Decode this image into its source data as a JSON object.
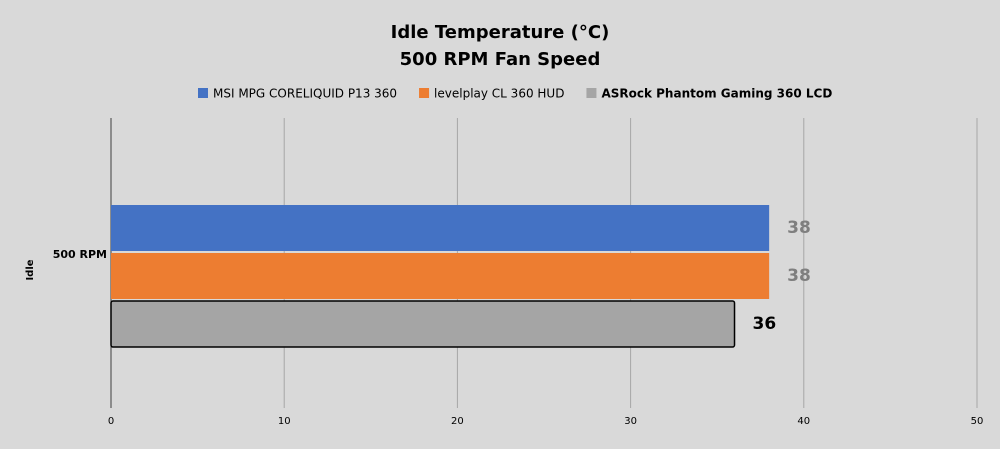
{
  "chart_data": {
    "type": "bar",
    "orientation": "horizontal",
    "title": "Idle Temperature (°C)",
    "subtitle": "500 RPM Fan Speed",
    "y_label": "Idle",
    "categories": [
      "500 RPM"
    ],
    "series": [
      {
        "name": "MSI MPG CORELIQUID P13 360",
        "color": "#4472c4",
        "label_color": "#7f7f7f",
        "values": [
          38
        ]
      },
      {
        "name": "levelplay CL 360 HUD",
        "color": "#ed7d31",
        "label_color": "#7f7f7f",
        "values": [
          38
        ]
      },
      {
        "name": "ASRock Phantom Gaming 360 LCD",
        "color": "#a5a5a5",
        "edgecolor": "#000000",
        "label_color": "#000000",
        "values": [
          36
        ]
      }
    ],
    "xlim": [
      0,
      50
    ],
    "xticks": [
      0,
      10,
      20,
      30,
      40,
      50
    ],
    "grid": true,
    "legend": "top"
  }
}
